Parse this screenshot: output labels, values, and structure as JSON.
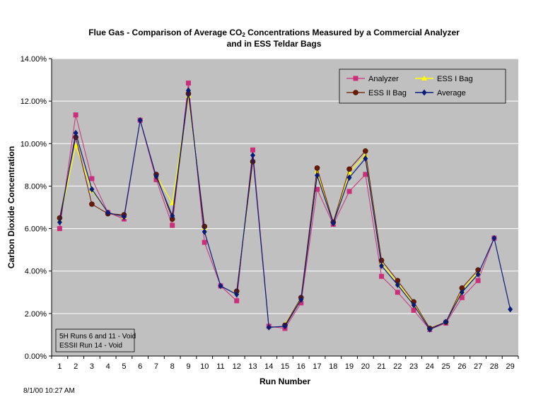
{
  "title": {
    "line1_pre": "Flue Gas - Comparison of Average CO",
    "line1_sub": "2",
    "line1_post": " Concentrations Measured by a Commercial Analyzer",
    "line2": "and in ESS Teldar Bags"
  },
  "timestamp": "8/1/00 10:27 AM",
  "note": [
    "5H Runs 6 and 11 - Void",
    "ESSII Run 14 - Void"
  ],
  "colors": {
    "plot_bg": "#c0c0c0",
    "grid": "#ffffff",
    "analyzer": "#cc2f7a",
    "ess1": "#ffff00",
    "ess2": "#6b1a00",
    "average": "#0a1c7a"
  },
  "chart_data": {
    "type": "line",
    "title": "Flue Gas - Comparison of Average CO2 Concentrations Measured by a Commercial Analyzer and in ESS Teldar Bags",
    "xlabel": "Run Number",
    "ylabel": "Carbon Dioxide Concentration",
    "ylim": [
      0,
      14
    ],
    "yticks": [
      0,
      2,
      4,
      6,
      8,
      10,
      12,
      14
    ],
    "ytick_labels": [
      "0.00%",
      "2.00%",
      "4.00%",
      "6.00%",
      "8.00%",
      "10.00%",
      "12.00%",
      "14.00%"
    ],
    "categories": [
      "1",
      "2",
      "3",
      "4",
      "5",
      "6",
      "7",
      "8",
      "9",
      "10",
      "11",
      "12",
      "13",
      "14",
      "15",
      "16",
      "17",
      "18",
      "19",
      "20",
      "21",
      "22",
      "23",
      "24",
      "25",
      "26",
      "27",
      "28",
      "29"
    ],
    "legend_position": "top-right",
    "grid": true,
    "series": [
      {
        "name": "Analyzer",
        "marker": "square",
        "values": [
          6.0,
          11.35,
          8.35,
          6.75,
          6.45,
          11.1,
          8.3,
          6.15,
          12.85,
          5.35,
          3.3,
          2.6,
          9.7,
          1.4,
          1.3,
          2.5,
          7.85,
          6.2,
          7.75,
          8.55,
          3.75,
          3.0,
          2.15,
          1.25,
          1.55,
          2.75,
          3.55,
          5.55,
          null
        ]
      },
      {
        "name": "ESS I Bag",
        "marker": "triangle",
        "values": [
          6.4,
          9.9,
          7.8,
          6.75,
          6.55,
          null,
          8.5,
          7.2,
          12.25,
          6.05,
          null,
          3.0,
          9.15,
          null,
          1.5,
          2.7,
          8.7,
          6.3,
          8.65,
          9.45,
          4.35,
          3.45,
          2.45,
          1.3,
          1.6,
          3.1,
          3.95,
          null,
          null
        ]
      },
      {
        "name": "ESS II Bag",
        "marker": "circle",
        "values": [
          6.5,
          10.3,
          7.15,
          6.7,
          6.65,
          null,
          8.55,
          6.45,
          12.35,
          6.1,
          null,
          3.05,
          9.15,
          null,
          1.45,
          2.75,
          8.85,
          6.3,
          8.8,
          9.65,
          4.5,
          3.55,
          2.55,
          1.3,
          1.6,
          3.2,
          4.05,
          null,
          null
        ]
      },
      {
        "name": "Average",
        "marker": "diamond",
        "values": [
          6.3,
          10.5,
          7.85,
          6.75,
          6.55,
          11.1,
          8.45,
          6.6,
          12.5,
          5.85,
          3.3,
          2.9,
          9.45,
          1.35,
          1.4,
          2.65,
          8.5,
          6.25,
          8.4,
          9.3,
          4.25,
          3.35,
          2.4,
          1.25,
          1.6,
          3.0,
          3.85,
          5.55,
          2.2
        ]
      }
    ]
  }
}
